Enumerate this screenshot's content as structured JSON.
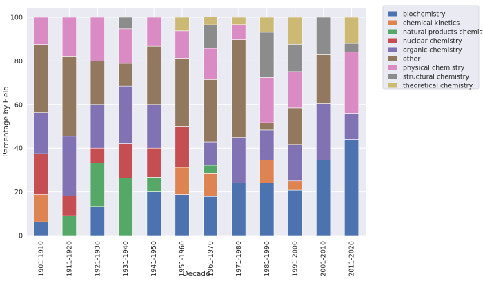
{
  "chart_data": {
    "type": "bar",
    "stacked": true,
    "xlabel": "Decade",
    "ylabel": "Percentage by Field",
    "ylim": [
      0,
      100
    ],
    "yticks": [
      "0",
      "20",
      "40",
      "60",
      "80",
      "100"
    ],
    "grid": true,
    "legend_position": "outside-top-right",
    "categories": [
      "1901-1910",
      "1911-1920",
      "1921-1930",
      "1931-1940",
      "1941-1950",
      "1951-1960",
      "1961-1970",
      "1971-1980",
      "1981-1990",
      "1991-2000",
      "2001-2010",
      "2011-2020"
    ],
    "series": [
      {
        "name": "biochemistry",
        "color": "#4c72b0",
        "values": [
          6.25,
          0,
          13.3,
          0,
          20,
          18.75,
          17.9,
          24.2,
          24.2,
          20.8,
          34.5,
          44
        ]
      },
      {
        "name": "chemical kinetics",
        "color": "#dd8452",
        "values": [
          12.5,
          0,
          0,
          0,
          0,
          12.5,
          10.7,
          0,
          10.3,
          4.2,
          0,
          0
        ]
      },
      {
        "name": "natural products chemistry",
        "color": "#55a868",
        "values": [
          0,
          9.1,
          20,
          26.3,
          6.7,
          0,
          3.6,
          0,
          0,
          0,
          0,
          0
        ]
      },
      {
        "name": "nuclear chemistry",
        "color": "#c44e52",
        "values": [
          18.75,
          9.1,
          6.7,
          15.8,
          13.3,
          18.75,
          0,
          0,
          0,
          0,
          0,
          0
        ]
      },
      {
        "name": "organic chemistry",
        "color": "#8172b3",
        "values": [
          18.75,
          27.3,
          20,
          26.3,
          20,
          0,
          10.7,
          20.7,
          13.8,
          16.7,
          25.9,
          12
        ]
      },
      {
        "name": "other",
        "color": "#937860",
        "values": [
          31.25,
          36.4,
          20,
          10.5,
          26.7,
          31.25,
          28.6,
          44.8,
          3.4,
          16.7,
          22.4,
          0
        ]
      },
      {
        "name": "physical chemistry",
        "color": "#da8bc3",
        "values": [
          12.5,
          18.1,
          20,
          15.8,
          13.3,
          12.5,
          14.3,
          6.9,
          20.7,
          16.7,
          0,
          28
        ]
      },
      {
        "name": "structural chemistry",
        "color": "#8c8c8c",
        "values": [
          0,
          0,
          0,
          5.3,
          0,
          0,
          10.7,
          0,
          20.7,
          12.5,
          17.2,
          4
        ]
      },
      {
        "name": "theoretical chemistry",
        "color": "#ccb974",
        "values": [
          0,
          0,
          0,
          0,
          0,
          6.25,
          3.6,
          3.4,
          6.9,
          12.4,
          0,
          12
        ]
      }
    ]
  }
}
